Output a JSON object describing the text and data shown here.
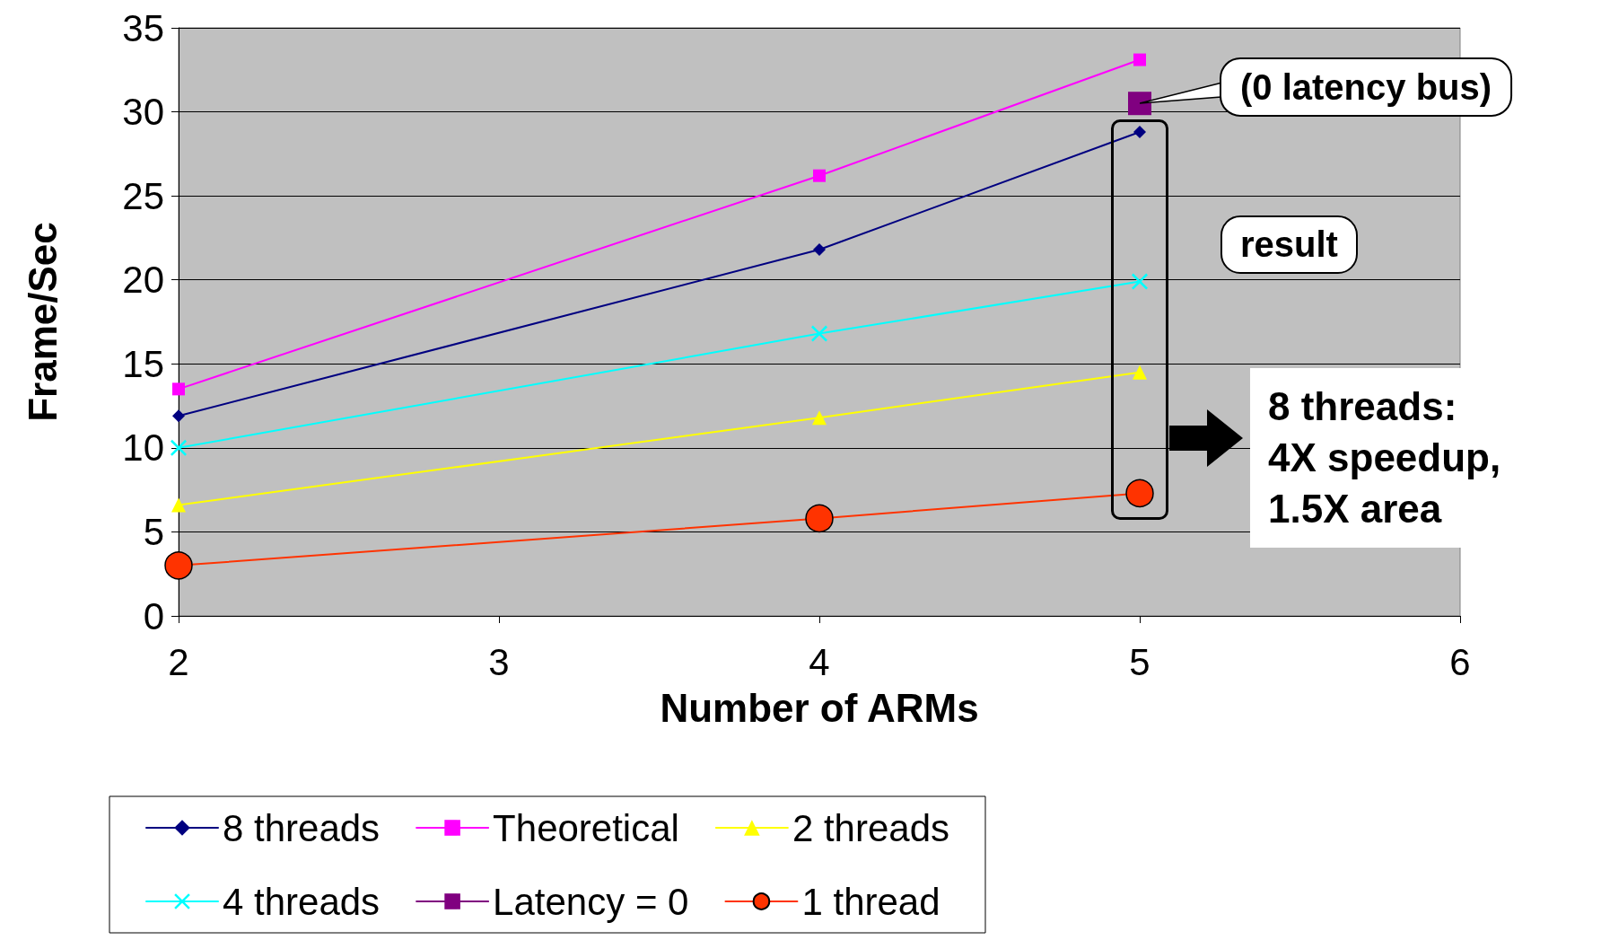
{
  "chart_data": {
    "type": "line",
    "xlabel": "Number of ARMs",
    "ylabel": "Frame/Sec",
    "x": [
      2,
      4,
      5
    ],
    "xlim": [
      2,
      6
    ],
    "xticks": [
      2,
      3,
      4,
      5,
      6
    ],
    "ylim": [
      0,
      35
    ],
    "yticks": [
      0,
      5,
      10,
      15,
      20,
      25,
      30,
      35
    ],
    "series": [
      {
        "name": "8 threads",
        "color": "#000080",
        "marker": "diamond",
        "values": [
          11.9,
          21.8,
          28.8
        ]
      },
      {
        "name": "Theoretical",
        "color": "#ff00ff",
        "marker": "square",
        "values": [
          13.5,
          26.2,
          33.1
        ]
      },
      {
        "name": "2 threads",
        "color": "#ffff00",
        "marker": "triangle",
        "values": [
          6.6,
          11.8,
          14.5
        ]
      },
      {
        "name": "4 threads",
        "color": "#00ffff",
        "marker": "cross",
        "values": [
          10.0,
          16.8,
          19.9
        ]
      },
      {
        "name": "Latency = 0",
        "color": "#800080",
        "marker": "square",
        "x": [
          5
        ],
        "values": [
          30.5
        ]
      },
      {
        "name": "1 thread",
        "color": "#ff3300",
        "marker": "circle",
        "values": [
          3.0,
          5.8,
          7.3
        ]
      }
    ],
    "grid": "y",
    "legend": "bottom",
    "line_style": "solid",
    "annotations": [
      {
        "text": "(0 latency bus)",
        "x": 5,
        "y": 30.5
      },
      "result",
      "8 threads: 4X speedup, 1.5X area"
    ]
  }
}
